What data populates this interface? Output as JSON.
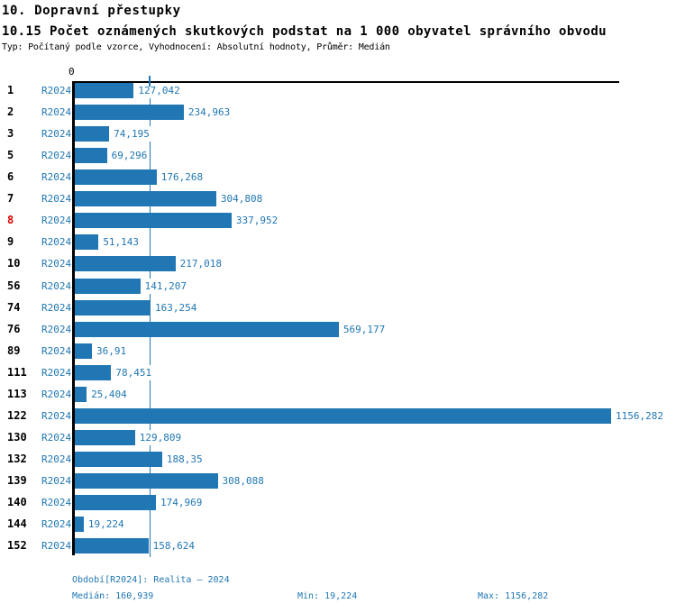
{
  "header": {
    "title": "10. Dopravní přestupky",
    "subtitle": "10.15 Počet oznámených skutkových podstat na 1 000 obyvatel správního obvodu",
    "meta": "Typ: Počítaný podle vzorce, Vyhodnocení: Absolutní hodnoty, Průměr: Medián"
  },
  "chart_data": {
    "type": "bar",
    "orientation": "horizontal",
    "series_label": "R2024",
    "categories": [
      "1",
      "2",
      "3",
      "5",
      "6",
      "7",
      "8",
      "9",
      "10",
      "56",
      "74",
      "76",
      "89",
      "111",
      "113",
      "122",
      "130",
      "132",
      "139",
      "140",
      "144",
      "152"
    ],
    "values": [
      127.042,
      234.963,
      74.195,
      69.296,
      176.268,
      304.808,
      337.952,
      51.143,
      217.018,
      141.207,
      163.254,
      569.177,
      36.91,
      78.451,
      25.404,
      1156.282,
      129.809,
      188.35,
      308.088,
      174.969,
      19.224,
      158.624
    ],
    "value_labels": [
      "127,042",
      "234,963",
      "74,195",
      "69,296",
      "176,268",
      "304,808",
      "337,952",
      "51,143",
      "217,018",
      "141,207",
      "163,254",
      "569,177",
      "36,91",
      "78,451",
      "25,404",
      "1156,282",
      "129,809",
      "188,35",
      "308,088",
      "174,969",
      "19,224",
      "158,624"
    ],
    "highlighted_category": "8",
    "median": 160.939,
    "axis_zero_label": "0",
    "xlim": [
      0,
      1156.282
    ],
    "grid": "off",
    "legend": "none",
    "bar_color": "#2077b4",
    "text_color": "#2077b4",
    "highlight_color": "#e00000"
  },
  "footer": {
    "period": "Období[R2024]: Realita – 2024",
    "median": "Medián: 160,939",
    "min": "Min: 19,224",
    "max": "Max: 1156,282"
  }
}
